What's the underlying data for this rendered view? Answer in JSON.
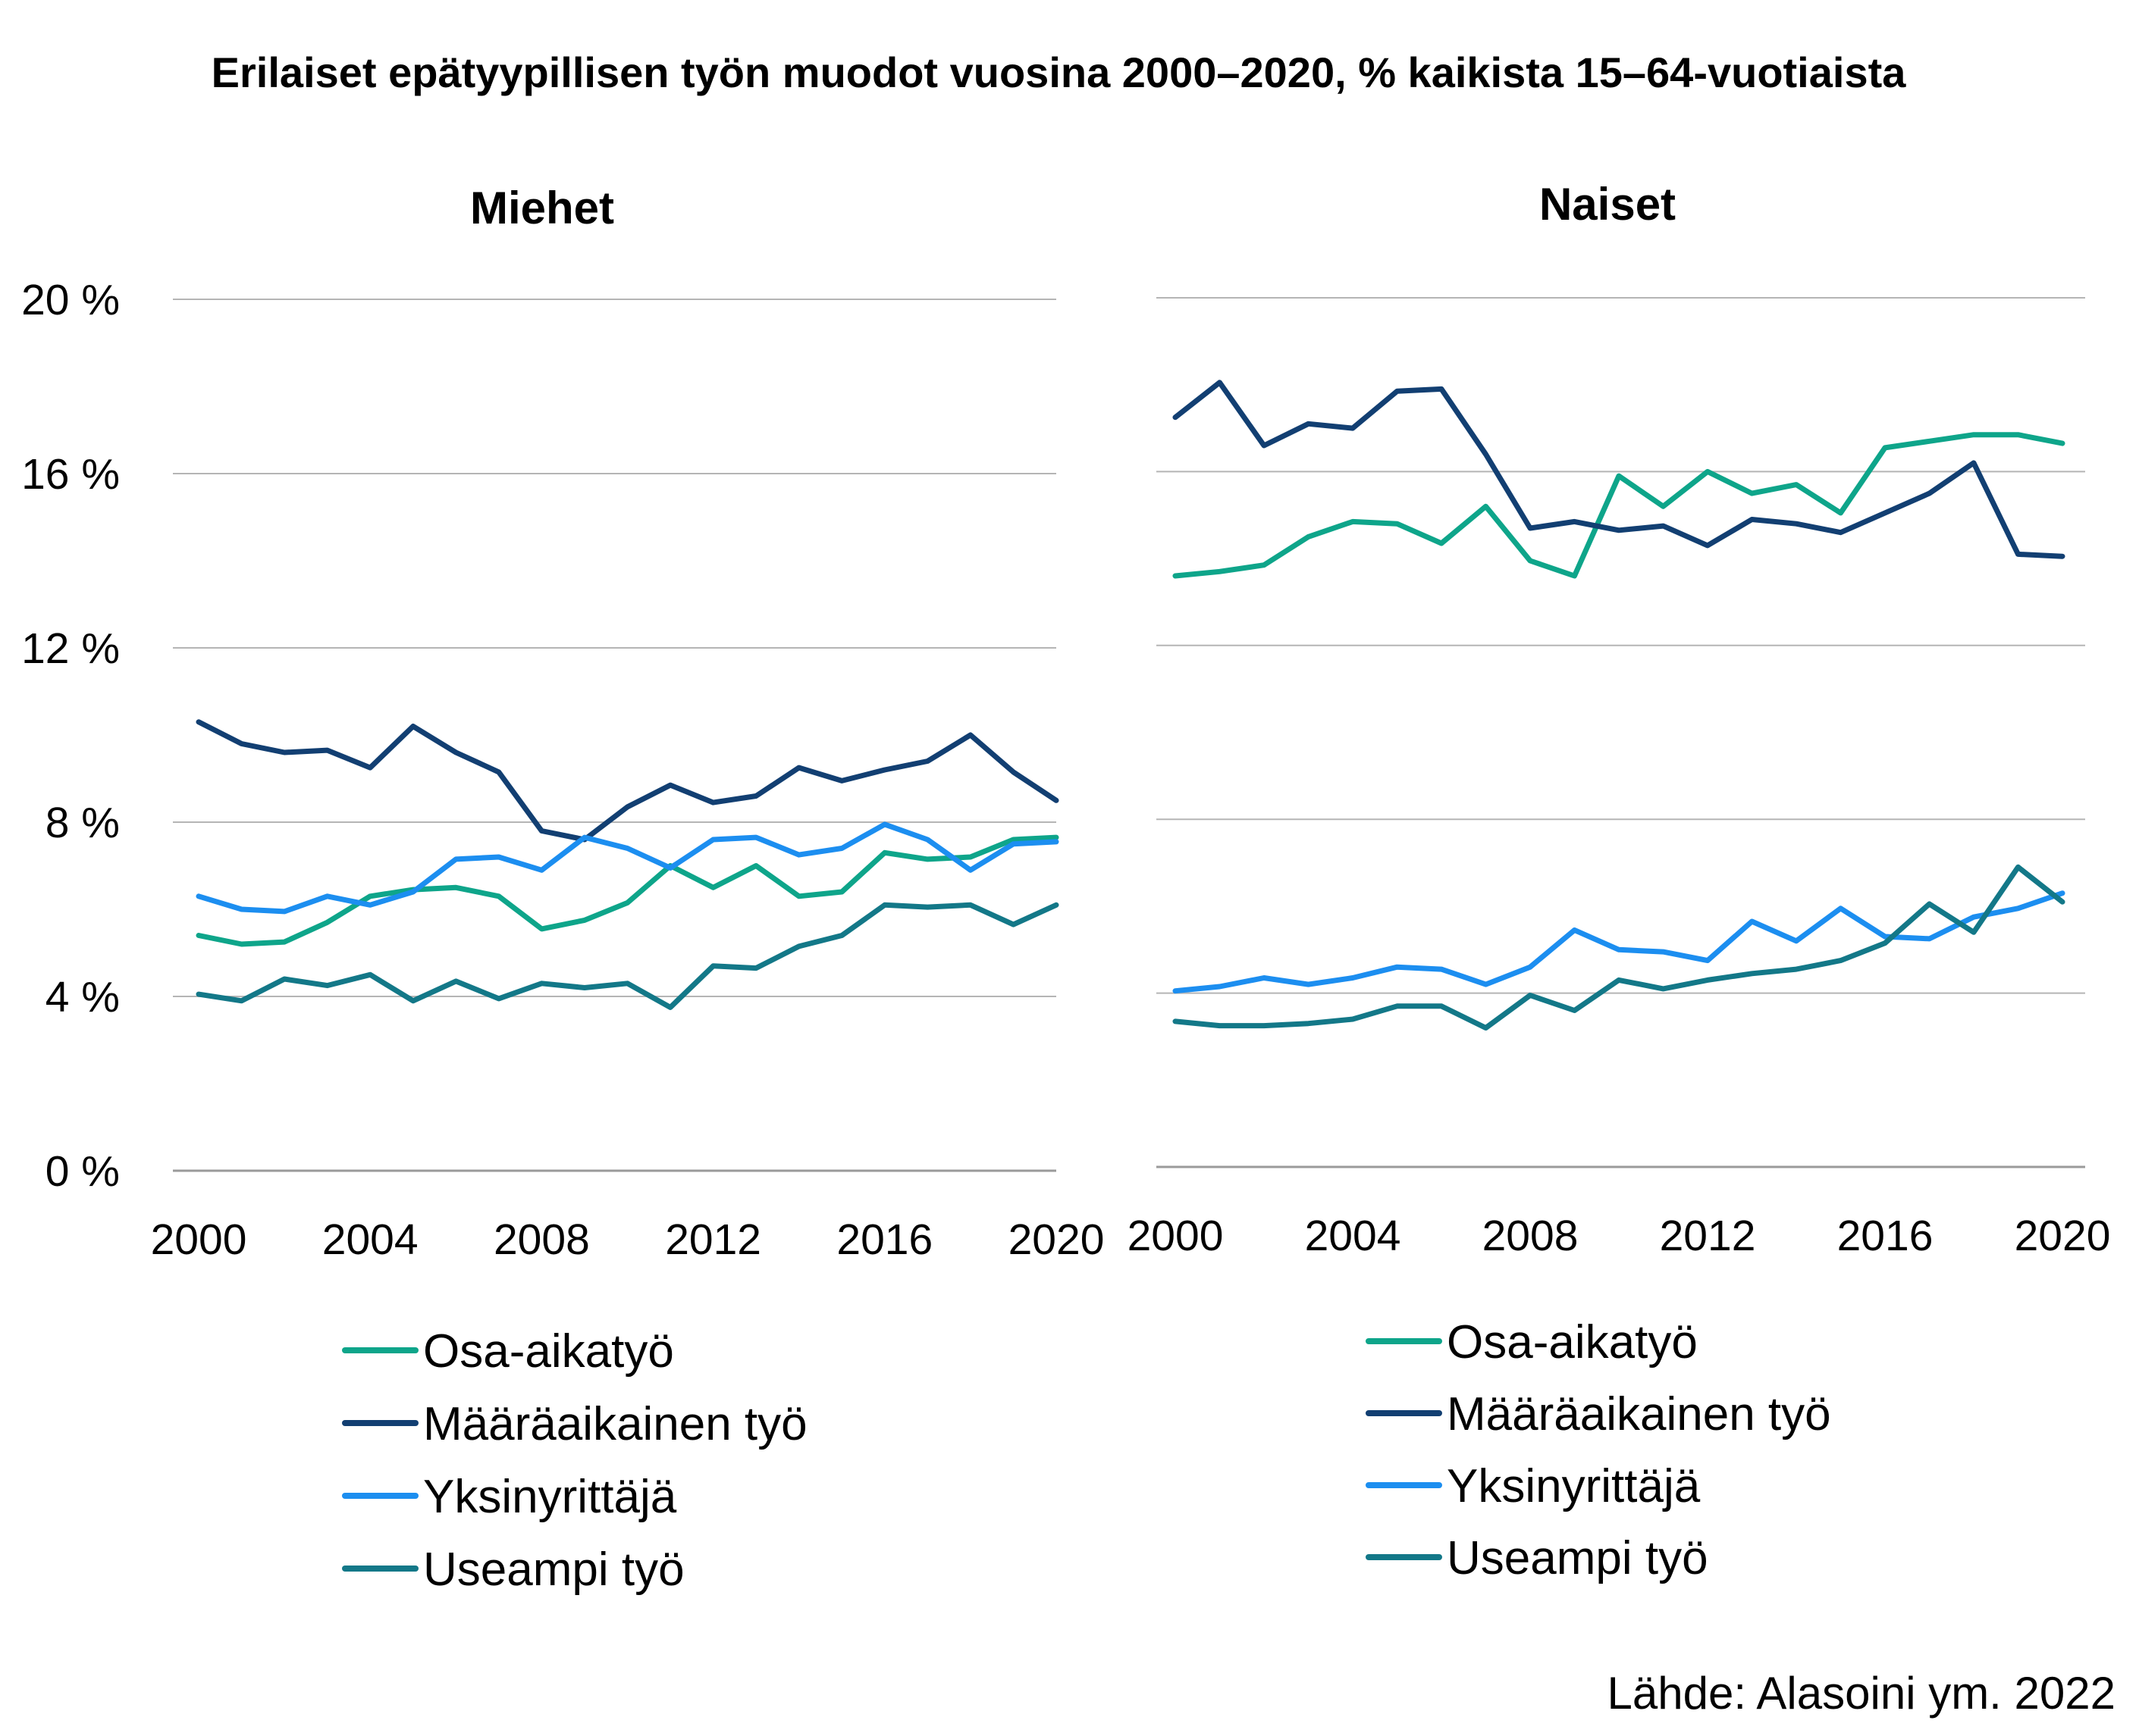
{
  "chart_data": {
    "type": "line",
    "title": "Erilaiset epätyypillisen työn muodot vuosina 2000–2020, % kaikista 15–64-vuotiaista",
    "source": "Lähde: Alasoini ym. 2022",
    "ylim": [
      0,
      20
    ],
    "yticks": [
      "0 %",
      "4 %",
      "8 %",
      "12 %",
      "16 %",
      "20 %"
    ],
    "ytick_values": [
      0,
      4,
      8,
      12,
      16,
      20
    ],
    "xlim": [
      2000,
      2020
    ],
    "xticks": [
      "2000",
      "2004",
      "2008",
      "2012",
      "2016",
      "2020"
    ],
    "xtick_values": [
      2000,
      2004,
      2008,
      2012,
      2016,
      2020
    ],
    "grid": true,
    "legend_position": "below",
    "x": [
      2000,
      2001,
      2002,
      2003,
      2004,
      2005,
      2006,
      2007,
      2008,
      2009,
      2010,
      2011,
      2012,
      2013,
      2014,
      2015,
      2016,
      2017,
      2018,
      2019,
      2020
    ],
    "series_styles": [
      {
        "name": "Osa-aikatyö",
        "color": "#0ea58a"
      },
      {
        "name": "Määräaikainen työ",
        "color": "#123f72"
      },
      {
        "name": "Yksinyrittäjä",
        "color": "#1c8ef0"
      },
      {
        "name": "Useampi työ",
        "color": "#137888"
      }
    ],
    "panels": [
      {
        "title": "Miehet",
        "series": [
          {
            "name": "Osa-aikatyö",
            "values": [
              5.4,
              5.2,
              5.25,
              5.7,
              6.3,
              6.45,
              6.5,
              6.3,
              5.55,
              5.75,
              6.15,
              7.0,
              6.5,
              7.0,
              6.3,
              6.4,
              7.3,
              7.15,
              7.2,
              7.6,
              7.65
            ]
          },
          {
            "name": "Määräaikainen työ",
            "values": [
              10.3,
              9.8,
              9.6,
              9.65,
              9.25,
              10.2,
              9.6,
              9.15,
              7.8,
              7.6,
              8.35,
              8.85,
              8.45,
              8.6,
              9.25,
              8.95,
              9.2,
              9.4,
              10.0,
              9.15,
              8.5
            ]
          },
          {
            "name": "Yksinyrittäjä",
            "values": [
              6.3,
              6.0,
              5.95,
              6.3,
              6.1,
              6.4,
              7.15,
              7.2,
              6.9,
              7.65,
              7.4,
              6.95,
              7.6,
              7.65,
              7.25,
              7.4,
              7.95,
              7.6,
              6.9,
              7.5,
              7.55
            ]
          },
          {
            "name": "Useampi työ",
            "values": [
              4.05,
              3.9,
              4.4,
              4.25,
              4.5,
              3.9,
              4.35,
              3.95,
              4.3,
              4.2,
              4.3,
              3.75,
              4.7,
              4.65,
              5.15,
              5.4,
              6.1,
              6.05,
              6.1,
              5.65,
              6.1
            ]
          }
        ]
      },
      {
        "title": "Naiset",
        "series": [
          {
            "name": "Osa-aikatyö",
            "values": [
              13.6,
              13.7,
              13.85,
              14.5,
              14.85,
              14.8,
              14.35,
              15.2,
              13.95,
              13.6,
              15.9,
              15.2,
              16.0,
              15.5,
              15.7,
              15.05,
              16.55,
              16.7,
              16.85,
              16.85,
              16.65
            ]
          },
          {
            "name": "Määräaikainen työ",
            "values": [
              17.25,
              18.05,
              16.6,
              17.1,
              17.0,
              17.85,
              17.9,
              16.4,
              14.7,
              14.85,
              14.65,
              14.75,
              14.3,
              14.9,
              14.8,
              14.6,
              15.05,
              15.5,
              16.2,
              14.1,
              14.05
            ]
          },
          {
            "name": "Yksinyrittäjä",
            "values": [
              4.05,
              4.15,
              4.35,
              4.2,
              4.35,
              4.6,
              4.55,
              4.2,
              4.6,
              5.45,
              5.0,
              4.95,
              4.75,
              5.65,
              5.2,
              5.95,
              5.3,
              5.25,
              5.75,
              5.95,
              6.3
            ]
          },
          {
            "name": "Useampi työ",
            "values": [
              3.35,
              3.25,
              3.25,
              3.3,
              3.4,
              3.7,
              3.7,
              3.2,
              3.95,
              3.6,
              4.3,
              4.1,
              4.3,
              4.45,
              4.55,
              4.75,
              5.15,
              6.05,
              5.4,
              6.9,
              6.1
            ]
          }
        ]
      }
    ]
  }
}
